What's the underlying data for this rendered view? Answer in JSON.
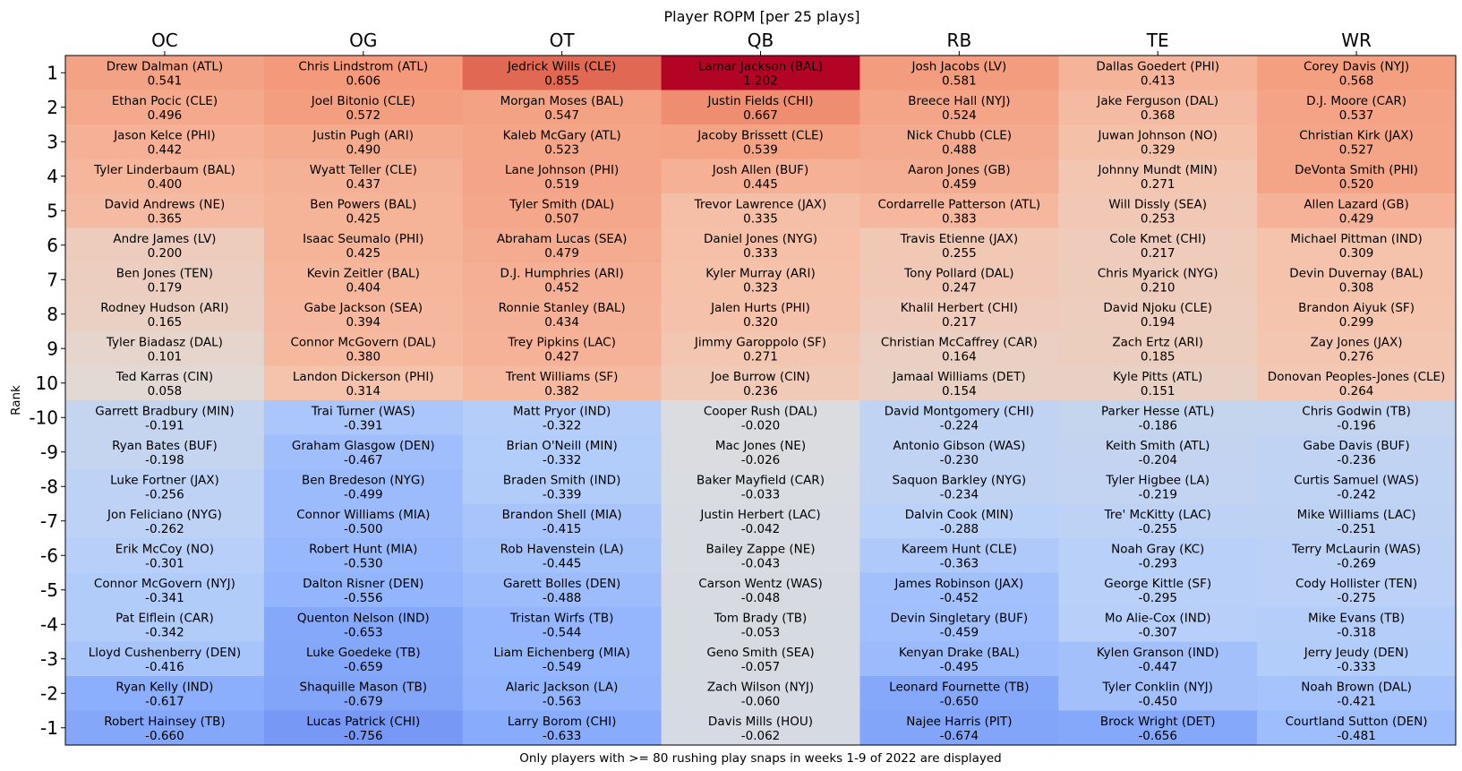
{
  "chart_data": {
    "type": "heatmap",
    "title": "Player ROPM [per 25 plays]",
    "xlabel": "Only players with >= 80 rushing play snaps in weeks 1-9 of 2022 are displayed",
    "ylabel": "Rank",
    "x_axis_position": "top",
    "grid": false,
    "colormap": "coolwarm",
    "color_range": [
      -1.202,
      1.202
    ],
    "columns": [
      "OC",
      "OG",
      "OT",
      "QB",
      "RB",
      "TE",
      "WR"
    ],
    "rows": [
      "1",
      "2",
      "3",
      "4",
      "5",
      "6",
      "7",
      "8",
      "9",
      "10",
      "-10",
      "-9",
      "-8",
      "-7",
      "-6",
      "-5",
      "-4",
      "-3",
      "-2",
      "-1"
    ],
    "cells": [
      [
        [
          "Drew Dalman (ATL)",
          "0.541"
        ],
        [
          "Chris Lindstrom (ATL)",
          "0.606"
        ],
        [
          "Jedrick Wills (CLE)",
          "0.855"
        ],
        [
          "Lamar Jackson (BAL)",
          "1.202"
        ],
        [
          "Josh Jacobs (LV)",
          "0.581"
        ],
        [
          "Dallas Goedert (PHI)",
          "0.413"
        ],
        [
          "Corey Davis (NYJ)",
          "0.568"
        ]
      ],
      [
        [
          "Ethan Pocic (CLE)",
          "0.496"
        ],
        [
          "Joel Bitonio (CLE)",
          "0.572"
        ],
        [
          "Morgan Moses (BAL)",
          "0.547"
        ],
        [
          "Justin Fields (CHI)",
          "0.667"
        ],
        [
          "Breece Hall (NYJ)",
          "0.524"
        ],
        [
          "Jake Ferguson (DAL)",
          "0.368"
        ],
        [
          "D.J. Moore (CAR)",
          "0.537"
        ]
      ],
      [
        [
          "Jason Kelce (PHI)",
          "0.442"
        ],
        [
          "Justin Pugh (ARI)",
          "0.490"
        ],
        [
          "Kaleb McGary (ATL)",
          "0.523"
        ],
        [
          "Jacoby Brissett (CLE)",
          "0.539"
        ],
        [
          "Nick Chubb (CLE)",
          "0.488"
        ],
        [
          "Juwan Johnson (NO)",
          "0.329"
        ],
        [
          "Christian Kirk (JAX)",
          "0.527"
        ]
      ],
      [
        [
          "Tyler Linderbaum (BAL)",
          "0.400"
        ],
        [
          "Wyatt Teller (CLE)",
          "0.437"
        ],
        [
          "Lane Johnson (PHI)",
          "0.519"
        ],
        [
          "Josh Allen (BUF)",
          "0.445"
        ],
        [
          "Aaron Jones (GB)",
          "0.459"
        ],
        [
          "Johnny Mundt (MIN)",
          "0.271"
        ],
        [
          "DeVonta Smith (PHI)",
          "0.520"
        ]
      ],
      [
        [
          "David Andrews (NE)",
          "0.365"
        ],
        [
          "Ben Powers (BAL)",
          "0.425"
        ],
        [
          "Tyler Smith (DAL)",
          "0.507"
        ],
        [
          "Trevor Lawrence (JAX)",
          "0.335"
        ],
        [
          "Cordarrelle Patterson (ATL)",
          "0.383"
        ],
        [
          "Will Dissly (SEA)",
          "0.253"
        ],
        [
          "Allen Lazard (GB)",
          "0.429"
        ]
      ],
      [
        [
          "Andre James (LV)",
          "0.200"
        ],
        [
          "Isaac Seumalo (PHI)",
          "0.425"
        ],
        [
          "Abraham Lucas (SEA)",
          "0.479"
        ],
        [
          "Daniel Jones (NYG)",
          "0.333"
        ],
        [
          "Travis Etienne (JAX)",
          "0.255"
        ],
        [
          "Cole Kmet (CHI)",
          "0.217"
        ],
        [
          "Michael Pittman (IND)",
          "0.309"
        ]
      ],
      [
        [
          "Ben Jones (TEN)",
          "0.179"
        ],
        [
          "Kevin Zeitler (BAL)",
          "0.404"
        ],
        [
          "D.J. Humphries (ARI)",
          "0.452"
        ],
        [
          "Kyler Murray (ARI)",
          "0.323"
        ],
        [
          "Tony Pollard (DAL)",
          "0.247"
        ],
        [
          "Chris Myarick (NYG)",
          "0.210"
        ],
        [
          "Devin Duvernay (BAL)",
          "0.308"
        ]
      ],
      [
        [
          "Rodney Hudson (ARI)",
          "0.165"
        ],
        [
          "Gabe Jackson (SEA)",
          "0.394"
        ],
        [
          "Ronnie Stanley (BAL)",
          "0.434"
        ],
        [
          "Jalen Hurts (PHI)",
          "0.320"
        ],
        [
          "Khalil Herbert (CHI)",
          "0.217"
        ],
        [
          "David Njoku (CLE)",
          "0.194"
        ],
        [
          "Brandon Aiyuk (SF)",
          "0.299"
        ]
      ],
      [
        [
          "Tyler Biadasz (DAL)",
          "0.101"
        ],
        [
          "Connor McGovern (DAL)",
          "0.380"
        ],
        [
          "Trey Pipkins (LAC)",
          "0.427"
        ],
        [
          "Jimmy Garoppolo (SF)",
          "0.271"
        ],
        [
          "Christian McCaffrey (CAR)",
          "0.164"
        ],
        [
          "Zach Ertz (ARI)",
          "0.185"
        ],
        [
          "Zay Jones (JAX)",
          "0.276"
        ]
      ],
      [
        [
          "Ted Karras (CIN)",
          "0.058"
        ],
        [
          "Landon Dickerson (PHI)",
          "0.314"
        ],
        [
          "Trent Williams (SF)",
          "0.382"
        ],
        [
          "Joe Burrow (CIN)",
          "0.236"
        ],
        [
          "Jamaal Williams (DET)",
          "0.154"
        ],
        [
          "Kyle Pitts (ATL)",
          "0.151"
        ],
        [
          "Donovan Peoples-Jones (CLE)",
          "0.264"
        ]
      ],
      [
        [
          "Garrett Bradbury (MIN)",
          "-0.191"
        ],
        [
          "Trai Turner (WAS)",
          "-0.391"
        ],
        [
          "Matt Pryor (IND)",
          "-0.322"
        ],
        [
          "Cooper Rush (DAL)",
          "-0.020"
        ],
        [
          "David Montgomery (CHI)",
          "-0.224"
        ],
        [
          "Parker Hesse (ATL)",
          "-0.186"
        ],
        [
          "Chris Godwin (TB)",
          "-0.196"
        ]
      ],
      [
        [
          "Ryan Bates (BUF)",
          "-0.198"
        ],
        [
          "Graham Glasgow (DEN)",
          "-0.467"
        ],
        [
          "Brian O'Neill (MIN)",
          "-0.332"
        ],
        [
          "Mac Jones (NE)",
          "-0.026"
        ],
        [
          "Antonio Gibson (WAS)",
          "-0.230"
        ],
        [
          "Keith Smith (ATL)",
          "-0.204"
        ],
        [
          "Gabe Davis (BUF)",
          "-0.236"
        ]
      ],
      [
        [
          "Luke Fortner (JAX)",
          "-0.256"
        ],
        [
          "Ben Bredeson (NYG)",
          "-0.499"
        ],
        [
          "Braden Smith (IND)",
          "-0.339"
        ],
        [
          "Baker Mayfield (CAR)",
          "-0.033"
        ],
        [
          "Saquon Barkley (NYG)",
          "-0.234"
        ],
        [
          "Tyler Higbee (LA)",
          "-0.219"
        ],
        [
          "Curtis Samuel (WAS)",
          "-0.242"
        ]
      ],
      [
        [
          "Jon Feliciano (NYG)",
          "-0.262"
        ],
        [
          "Connor Williams (MIA)",
          "-0.500"
        ],
        [
          "Brandon Shell (MIA)",
          "-0.415"
        ],
        [
          "Justin Herbert (LAC)",
          "-0.042"
        ],
        [
          "Dalvin Cook (MIN)",
          "-0.288"
        ],
        [
          "Tre' McKitty (LAC)",
          "-0.255"
        ],
        [
          "Mike Williams (LAC)",
          "-0.251"
        ]
      ],
      [
        [
          "Erik McCoy (NO)",
          "-0.301"
        ],
        [
          "Robert Hunt (MIA)",
          "-0.530"
        ],
        [
          "Rob Havenstein (LA)",
          "-0.445"
        ],
        [
          "Bailey Zappe (NE)",
          "-0.043"
        ],
        [
          "Kareem Hunt (CLE)",
          "-0.363"
        ],
        [
          "Noah Gray (KC)",
          "-0.293"
        ],
        [
          "Terry McLaurin (WAS)",
          "-0.269"
        ]
      ],
      [
        [
          "Connor McGovern (NYJ)",
          "-0.341"
        ],
        [
          "Dalton Risner (DEN)",
          "-0.556"
        ],
        [
          "Garett Bolles (DEN)",
          "-0.488"
        ],
        [
          "Carson Wentz (WAS)",
          "-0.048"
        ],
        [
          "James Robinson (JAX)",
          "-0.452"
        ],
        [
          "George Kittle (SF)",
          "-0.295"
        ],
        [
          "Cody Hollister (TEN)",
          "-0.275"
        ]
      ],
      [
        [
          "Pat Elflein (CAR)",
          "-0.342"
        ],
        [
          "Quenton Nelson (IND)",
          "-0.653"
        ],
        [
          "Tristan Wirfs (TB)",
          "-0.544"
        ],
        [
          "Tom Brady (TB)",
          "-0.053"
        ],
        [
          "Devin Singletary (BUF)",
          "-0.459"
        ],
        [
          "Mo Alie-Cox (IND)",
          "-0.307"
        ],
        [
          "Mike Evans (TB)",
          "-0.318"
        ]
      ],
      [
        [
          "Lloyd Cushenberry (DEN)",
          "-0.416"
        ],
        [
          "Luke Goedeke (TB)",
          "-0.659"
        ],
        [
          "Liam Eichenberg (MIA)",
          "-0.549"
        ],
        [
          "Geno Smith (SEA)",
          "-0.057"
        ],
        [
          "Kenyan Drake (BAL)",
          "-0.495"
        ],
        [
          "Kylen Granson (IND)",
          "-0.447"
        ],
        [
          "Jerry Jeudy (DEN)",
          "-0.333"
        ]
      ],
      [
        [
          "Ryan Kelly (IND)",
          "-0.617"
        ],
        [
          "Shaquille Mason (TB)",
          "-0.679"
        ],
        [
          "Alaric Jackson (LA)",
          "-0.563"
        ],
        [
          "Zach Wilson (NYJ)",
          "-0.060"
        ],
        [
          "Leonard Fournette (TB)",
          "-0.650"
        ],
        [
          "Tyler Conklin (NYJ)",
          "-0.450"
        ],
        [
          "Noah Brown (DAL)",
          "-0.421"
        ]
      ],
      [
        [
          "Robert Hainsey (TB)",
          "-0.660"
        ],
        [
          "Lucas Patrick (CHI)",
          "-0.756"
        ],
        [
          "Larry Borom (CHI)",
          "-0.633"
        ],
        [
          "Davis Mills (HOU)",
          "-0.062"
        ],
        [
          "Najee Harris (PIT)",
          "-0.674"
        ],
        [
          "Brock Wright (DET)",
          "-0.656"
        ],
        [
          "Courtland Sutton (DEN)",
          "-0.481"
        ]
      ]
    ]
  }
}
